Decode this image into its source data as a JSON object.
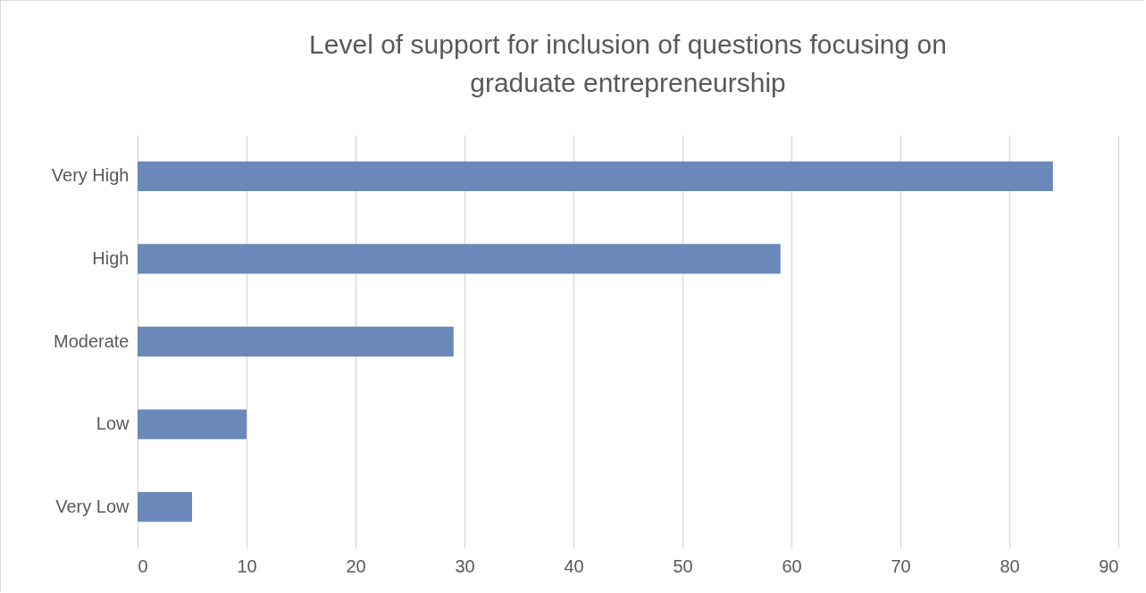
{
  "chart_data": {
    "type": "bar",
    "orientation": "horizontal",
    "title": "Level of support for inclusion of questions focusing on graduate entrepreneurship",
    "categories": [
      "Very High",
      "High",
      "Moderate",
      "Low",
      "Very Low"
    ],
    "values": [
      84,
      59,
      29,
      10,
      5
    ],
    "color": "#6a88b9",
    "xlim": [
      0,
      90
    ],
    "xticks": [
      0,
      10,
      20,
      30,
      40,
      50,
      60,
      70,
      80,
      90
    ],
    "grid": "x"
  }
}
